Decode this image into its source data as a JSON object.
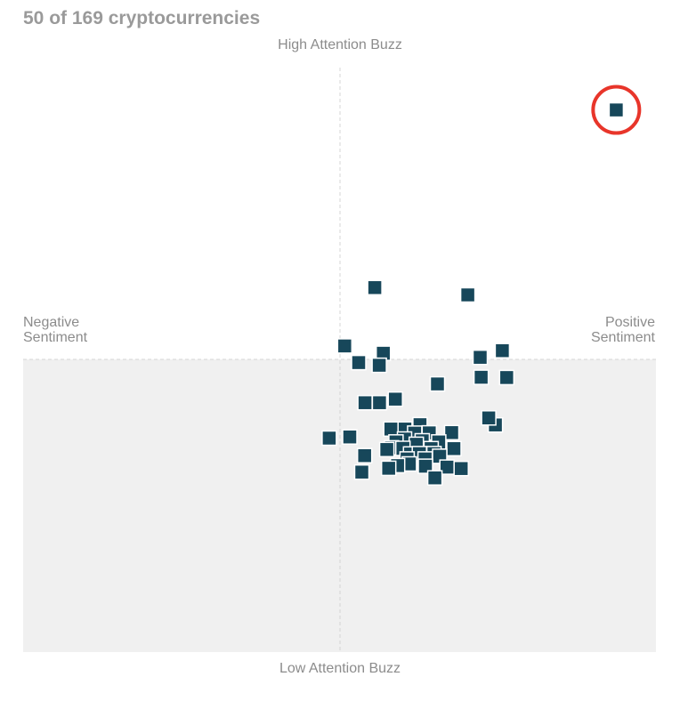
{
  "header": {
    "title": "50 of 169 cryptocurrencies"
  },
  "colors": {
    "marker": "#17475a",
    "highlight_ring": "#e8352a",
    "lower_region": "#f0f0f0",
    "axis_line": "#d4d4d4"
  },
  "chart_data": {
    "type": "scatter",
    "labels": {
      "top": "High Attention Buzz",
      "bottom": "Low Attention Buzz",
      "left_line1": "Negative",
      "left_line2": "Sentiment",
      "right_line1": "Positive",
      "right_line2": "Sentiment"
    },
    "xlim": [
      -1,
      1
    ],
    "ylim": [
      -1,
      1
    ],
    "grid": false,
    "highlighted_index": 0,
    "points": [
      {
        "x": 0.873,
        "y": 0.855
      },
      {
        "x": 0.11,
        "y": 0.246
      },
      {
        "x": 0.404,
        "y": 0.221
      },
      {
        "x": 0.015,
        "y": 0.046
      },
      {
        "x": 0.137,
        "y": 0.021
      },
      {
        "x": 0.059,
        "y": -0.011
      },
      {
        "x": 0.124,
        "y": -0.02
      },
      {
        "x": 0.443,
        "y": 0.007
      },
      {
        "x": 0.513,
        "y": 0.03
      },
      {
        "x": 0.446,
        "y": -0.061
      },
      {
        "x": 0.527,
        "y": -0.062
      },
      {
        "x": 0.308,
        "y": -0.084
      },
      {
        "x": 0.175,
        "y": -0.136
      },
      {
        "x": 0.125,
        "y": -0.148
      },
      {
        "x": 0.079,
        "y": -0.148
      },
      {
        "x": 0.491,
        "y": -0.224
      },
      {
        "x": 0.47,
        "y": -0.2
      },
      {
        "x": 0.253,
        "y": -0.223
      },
      {
        "x": 0.205,
        "y": -0.238
      },
      {
        "x": 0.161,
        "y": -0.238
      },
      {
        "x": 0.236,
        "y": -0.252
      },
      {
        "x": 0.282,
        "y": -0.251
      },
      {
        "x": 0.353,
        "y": -0.25
      },
      {
        "x": 0.031,
        "y": -0.265
      },
      {
        "x": -0.034,
        "y": -0.269
      },
      {
        "x": 0.204,
        "y": -0.272
      },
      {
        "x": 0.177,
        "y": -0.282
      },
      {
        "x": 0.26,
        "y": -0.278
      },
      {
        "x": 0.312,
        "y": -0.282
      },
      {
        "x": 0.241,
        "y": -0.29
      },
      {
        "x": 0.163,
        "y": -0.302
      },
      {
        "x": 0.199,
        "y": -0.304
      },
      {
        "x": 0.288,
        "y": -0.305
      },
      {
        "x": 0.36,
        "y": -0.305
      },
      {
        "x": 0.148,
        "y": -0.308
      },
      {
        "x": 0.223,
        "y": -0.323
      },
      {
        "x": 0.251,
        "y": -0.322
      },
      {
        "x": 0.297,
        "y": -0.322
      },
      {
        "x": 0.078,
        "y": -0.329
      },
      {
        "x": 0.212,
        "y": -0.34
      },
      {
        "x": 0.269,
        "y": -0.34
      },
      {
        "x": 0.315,
        "y": -0.331
      },
      {
        "x": 0.219,
        "y": -0.357
      },
      {
        "x": 0.182,
        "y": -0.363
      },
      {
        "x": 0.154,
        "y": -0.372
      },
      {
        "x": 0.27,
        "y": -0.365
      },
      {
        "x": 0.338,
        "y": -0.368
      },
      {
        "x": 0.383,
        "y": -0.373
      },
      {
        "x": 0.069,
        "y": -0.385
      },
      {
        "x": 0.3,
        "y": -0.405
      }
    ]
  }
}
